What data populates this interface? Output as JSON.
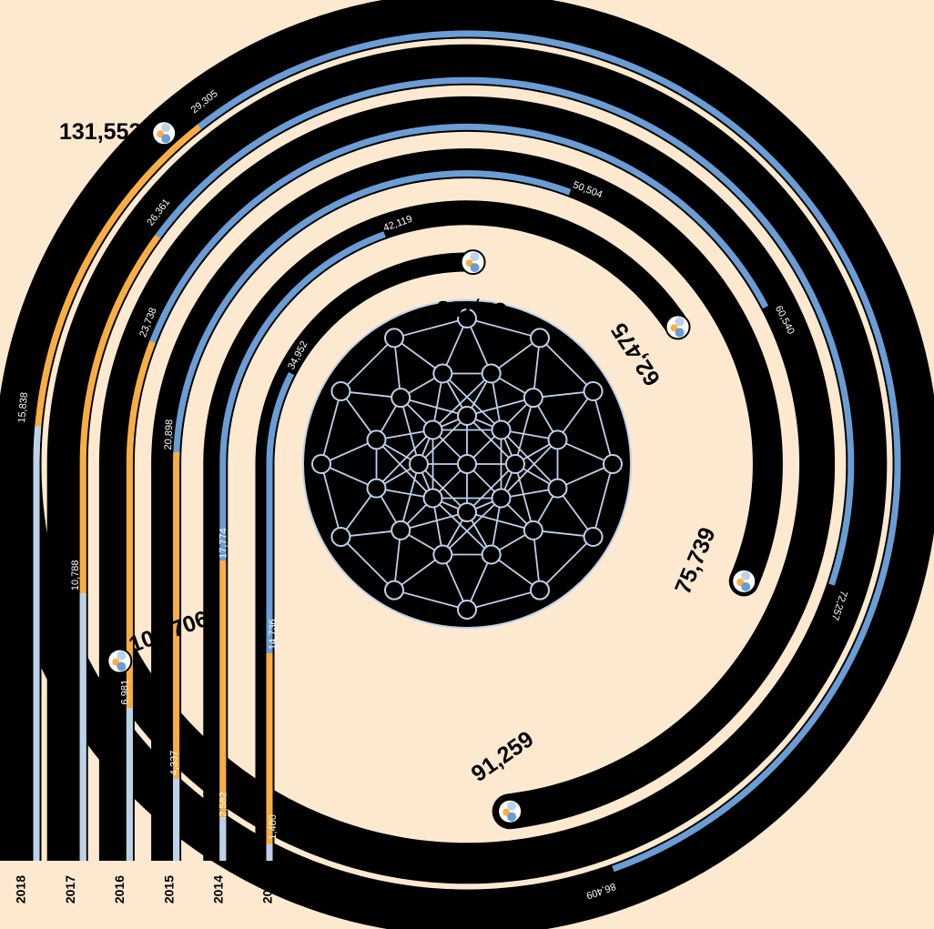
{
  "chart_data": {
    "type": "spiral-stacked-bar",
    "title": "",
    "series": [
      {
        "name": "",
        "color": "#BCD2EB"
      },
      {
        "name": "",
        "color": "#FAAE41"
      },
      {
        "name": "",
        "color": "#6A9DD5"
      }
    ],
    "rows": [
      {
        "year": "2013",
        "values": [
          1480,
          14736,
          34952
        ],
        "labels": [
          "1,480",
          "14,736",
          "34,952"
        ],
        "total": 51168,
        "total_label": "51,168"
      },
      {
        "year": "2014",
        "values": [
          2582,
          17774,
          42119
        ],
        "labels": [
          "2,582",
          "17,774",
          "42,119"
        ],
        "total": 62475,
        "total_label": "62,475"
      },
      {
        "year": "2015",
        "values": [
          4337,
          20898,
          50504
        ],
        "labels": [
          "4,337",
          "20,898",
          "50,504"
        ],
        "total": 75739,
        "total_label": "75,739"
      },
      {
        "year": "2016",
        "values": [
          6981,
          23738,
          60540
        ],
        "labels": [
          "6,981",
          "23,738",
          "60,540"
        ],
        "total": 91259,
        "total_label": "91,259"
      },
      {
        "year": "2017",
        "values": [
          10788,
          26361,
          72257
        ],
        "labels": [
          "10,788",
          "26,361",
          "72,257"
        ],
        "total": 109706,
        "total_label": "109,706"
      },
      {
        "year": "2018",
        "values": [
          15838,
          29305,
          86409
        ],
        "labels": [
          "15,838",
          "29,305",
          "86,409"
        ],
        "total": 131552,
        "total_label": "131,552"
      }
    ],
    "colors": {
      "background": "#FDE9D0",
      "track": "#000000",
      "network_lines": "#BCD2EB"
    },
    "icon": "network-globe-icon"
  }
}
